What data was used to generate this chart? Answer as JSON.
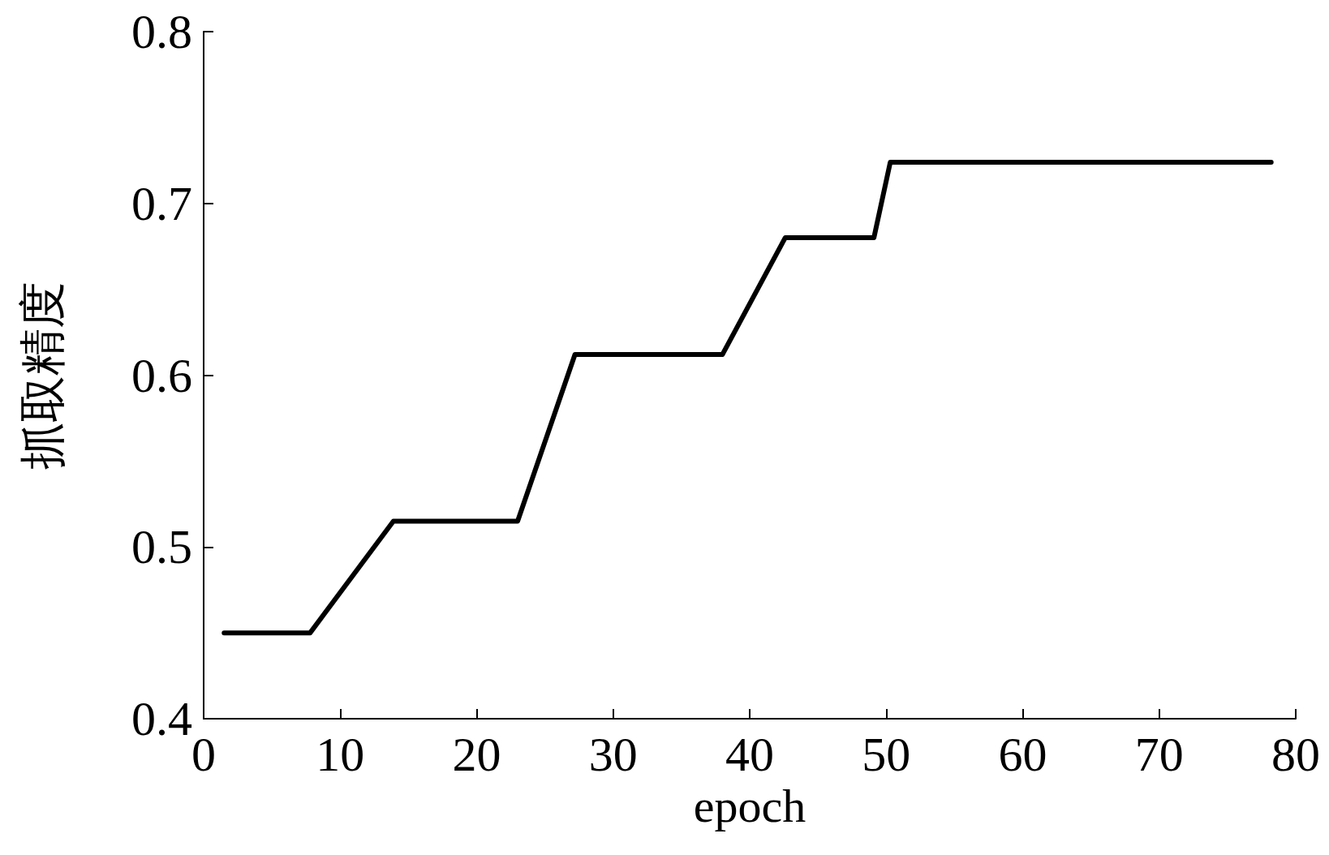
{
  "chart_data": {
    "type": "line",
    "xlabel": "epoch",
    "ylabel": "抓取精度",
    "x": [
      1.5,
      7.8,
      13.9,
      23.0,
      27.2,
      38.0,
      42.6,
      49.1,
      50.3,
      78.2
    ],
    "series": [
      {
        "color": "#000000",
        "values": [
          0.45,
          0.45,
          0.515,
          0.515,
          0.612,
          0.612,
          0.68,
          0.68,
          0.724,
          0.724
        ]
      }
    ],
    "xlim": [
      0,
      80
    ],
    "xticks": [
      0,
      10,
      20,
      30,
      40,
      50,
      60,
      70,
      80
    ],
    "ylim": [
      0.4,
      0.8
    ],
    "yticks": [
      0.4,
      0.5,
      0.6,
      0.7,
      0.8
    ],
    "grid": false,
    "marker": "none",
    "line_style": "solid"
  }
}
